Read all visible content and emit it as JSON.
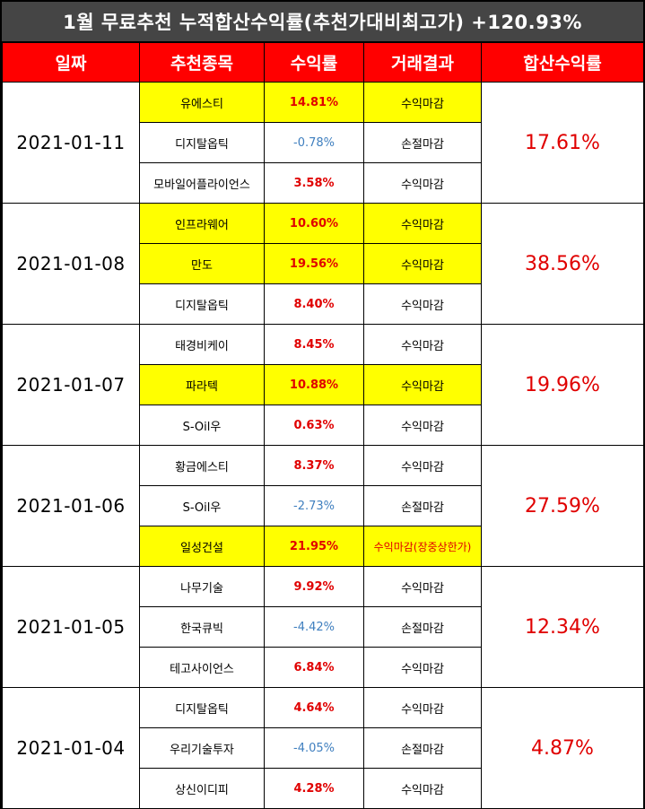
{
  "title": "1월 무료추천 누적합산수익률(추천가대비최고가) +120.93%",
  "headers": [
    "일짜",
    "추천종목",
    "수익률",
    "거래결과",
    "합산수익률"
  ],
  "groups": [
    {
      "date": "2021-01-11",
      "total": "17.61%",
      "rows": [
        {
          "stock": "유에스티",
          "ret": "14.81%",
          "result": "수익마감",
          "highlight": true,
          "negative": false
        },
        {
          "stock": "디지탈옵틱",
          "ret": "-0.78%",
          "result": "손절마감",
          "highlight": false,
          "negative": true
        },
        {
          "stock": "모바일어플라이언스",
          "ret": "3.58%",
          "result": "수익마감",
          "highlight": false,
          "negative": false
        }
      ]
    },
    {
      "date": "2021-01-08",
      "total": "38.56%",
      "rows": [
        {
          "stock": "인프라웨어",
          "ret": "10.60%",
          "result": "수익마감",
          "highlight": true,
          "negative": false
        },
        {
          "stock": "만도",
          "ret": "19.56%",
          "result": "수익마감",
          "highlight": true,
          "negative": false
        },
        {
          "stock": "디지탈옵틱",
          "ret": "8.40%",
          "result": "수익마감",
          "highlight": false,
          "negative": false
        }
      ]
    },
    {
      "date": "2021-01-07",
      "total": "19.96%",
      "rows": [
        {
          "stock": "태경비케이",
          "ret": "8.45%",
          "result": "수익마감",
          "highlight": false,
          "negative": false
        },
        {
          "stock": "파라텍",
          "ret": "10.88%",
          "result": "수익마감",
          "highlight": true,
          "negative": false
        },
        {
          "stock": "S-Oil우",
          "ret": "0.63%",
          "result": "수익마감",
          "highlight": false,
          "negative": false
        }
      ]
    },
    {
      "date": "2021-01-06",
      "total": "27.59%",
      "rows": [
        {
          "stock": "황금에스티",
          "ret": "8.37%",
          "result": "수익마감",
          "highlight": false,
          "negative": false
        },
        {
          "stock": "S-Oil우",
          "ret": "-2.73%",
          "result": "손절마감",
          "highlight": false,
          "negative": true
        },
        {
          "stock": "일성건설",
          "ret": "21.95%",
          "result": "수익마감(장중상한가)",
          "highlight": true,
          "negative": false,
          "special": true
        }
      ]
    },
    {
      "date": "2021-01-05",
      "total": "12.34%",
      "rows": [
        {
          "stock": "나무기술",
          "ret": "9.92%",
          "result": "수익마감",
          "highlight": false,
          "negative": false
        },
        {
          "stock": "한국큐빅",
          "ret": "-4.42%",
          "result": "손절마감",
          "highlight": false,
          "negative": true
        },
        {
          "stock": "테고사이언스",
          "ret": "6.84%",
          "result": "수익마감",
          "highlight": false,
          "negative": false
        }
      ]
    },
    {
      "date": "2021-01-04",
      "total": "4.87%",
      "rows": [
        {
          "stock": "디지탈옵틱",
          "ret": "4.64%",
          "result": "수익마감",
          "highlight": false,
          "negative": false
        },
        {
          "stock": "우리기술투자",
          "ret": "-4.05%",
          "result": "손절마감",
          "highlight": false,
          "negative": true
        },
        {
          "stock": "상신이디피",
          "ret": "4.28%",
          "result": "수익마감",
          "highlight": false,
          "negative": false
        }
      ]
    }
  ],
  "colors": {
    "title_bg": "#454545",
    "header_bg": "#ff0000",
    "highlight": "#ffff00",
    "positive": "#e00000",
    "negative": "#3f7fbf"
  }
}
